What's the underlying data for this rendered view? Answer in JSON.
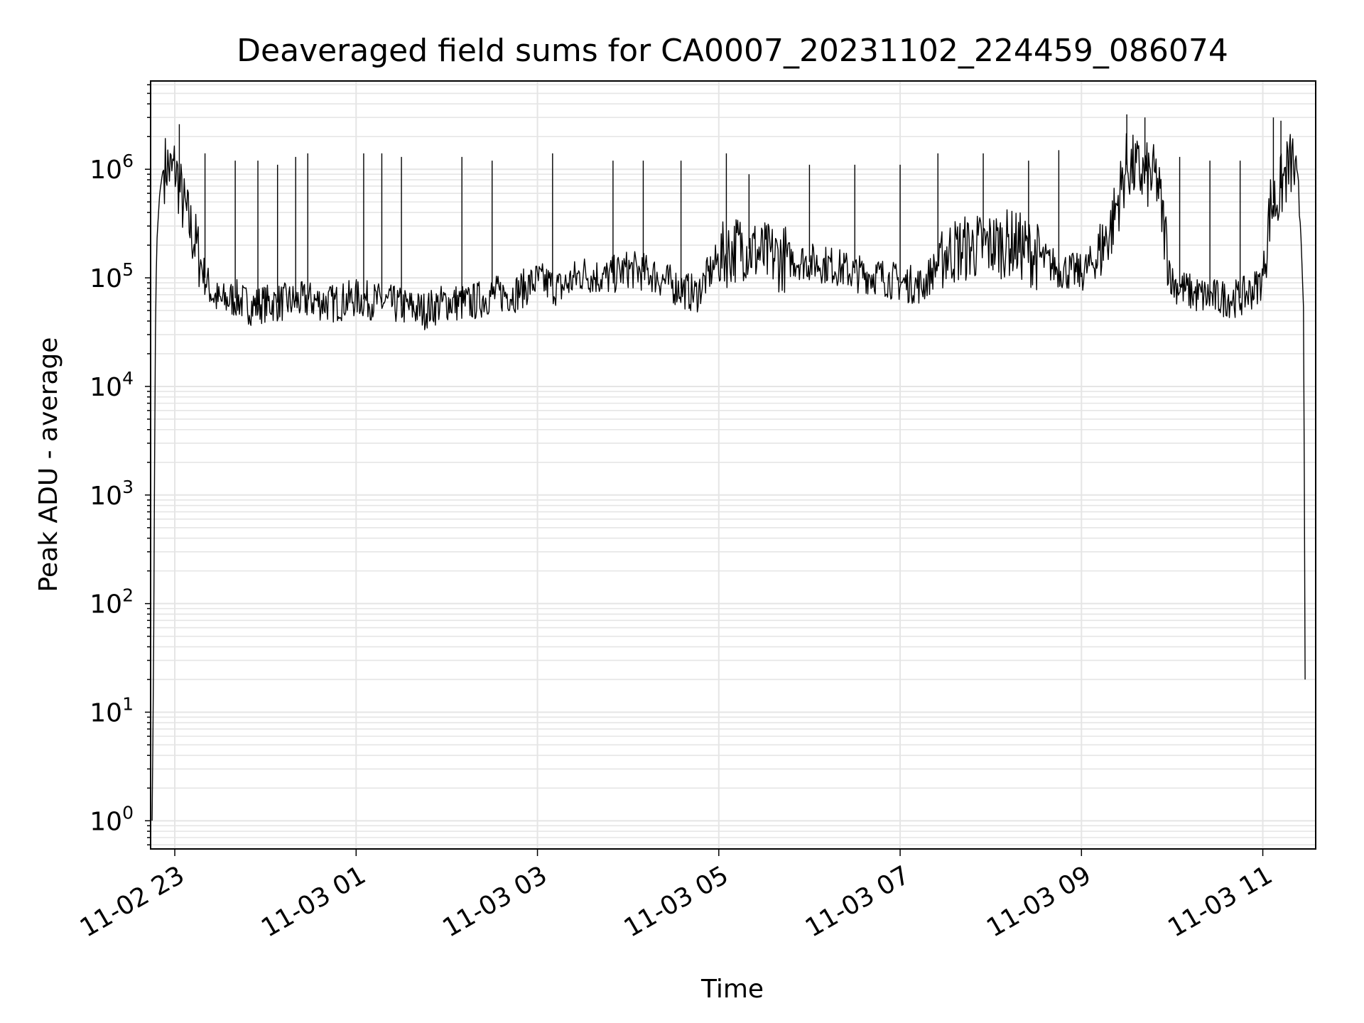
{
  "chart_data": {
    "type": "line",
    "title": "Deaveraged field sums for CA0007_20231102_224459_086074",
    "xlabel": "Time",
    "ylabel": "Peak ADU - average",
    "yscale": "log",
    "ylim": [
      0.55,
      6500000
    ],
    "xlim": [
      "11-02 22:44:00",
      "11-03 11:35:00"
    ],
    "grid": true,
    "line_color": "#000000",
    "grid_color": "#e5e5e5",
    "x_ticks": [
      {
        "value": "11-02 23:00",
        "label": "11-02 23"
      },
      {
        "value": "11-03 01:00",
        "label": "11-03 01"
      },
      {
        "value": "11-03 03:00",
        "label": "11-03 03"
      },
      {
        "value": "11-03 05:00",
        "label": "11-03 05"
      },
      {
        "value": "11-03 07:00",
        "label": "11-03 07"
      },
      {
        "value": "11-03 09:00",
        "label": "11-03 09"
      },
      {
        "value": "11-03 11:00",
        "label": "11-03 11"
      }
    ],
    "y_ticks": [
      {
        "value": 1,
        "base": "10",
        "exp": "0"
      },
      {
        "value": 10,
        "base": "10",
        "exp": "1"
      },
      {
        "value": 100,
        "base": "10",
        "exp": "2"
      },
      {
        "value": 1000,
        "base": "10",
        "exp": "3"
      },
      {
        "value": 10000,
        "base": "10",
        "exp": "4"
      },
      {
        "value": 100000,
        "base": "10",
        "exp": "5"
      },
      {
        "value": 1000000,
        "base": "10",
        "exp": "6"
      }
    ],
    "series": [
      {
        "x": [
          "11-02 22:45",
          "11-02 22:46",
          "11-02 22:47",
          "11-02 22:48",
          "11-02 22:50",
          "11-02 22:52",
          "11-02 22:55",
          "11-02 22:58",
          "11-02 23:00",
          "11-02 23:03",
          "11-02 23:06",
          "11-02 23:10",
          "11-02 23:15",
          "11-02 23:20",
          "11-02 23:25",
          "11-02 23:30",
          "11-02 23:40",
          "11-02 23:50",
          "11-03 00:00",
          "11-03 00:15",
          "11-03 00:30",
          "11-03 00:45",
          "11-03 01:00",
          "11-03 01:15",
          "11-03 01:30",
          "11-03 01:45",
          "11-03 02:00",
          "11-03 02:15",
          "11-03 02:30",
          "11-03 02:45",
          "11-03 03:00",
          "11-03 03:15",
          "11-03 03:30",
          "11-03 03:45",
          "11-03 04:00",
          "11-03 04:15",
          "11-03 04:30",
          "11-03 04:45",
          "11-03 05:00",
          "11-03 05:15",
          "11-03 05:30",
          "11-03 05:45",
          "11-03 06:00",
          "11-03 06:15",
          "11-03 06:30",
          "11-03 06:45",
          "11-03 07:00",
          "11-03 07:15",
          "11-03 07:30",
          "11-03 07:45",
          "11-03 08:00",
          "11-03 08:15",
          "11-03 08:30",
          "11-03 08:45",
          "11-03 09:00",
          "11-03 09:10",
          "11-03 09:20",
          "11-03 09:30",
          "11-03 09:40",
          "11-03 09:50",
          "11-03 10:00",
          "11-03 10:15",
          "11-03 10:30",
          "11-03 10:45",
          "11-03 10:55",
          "11-03 11:00",
          "11-03 11:05",
          "11-03 11:10",
          "11-03 11:15",
          "11-03 11:20",
          "11-03 11:25",
          "11-03 11:27",
          "11-03 11:28"
        ],
        "y": [
          1,
          30,
          20000,
          200000,
          600000,
          950000,
          1100000,
          900000,
          1050000,
          700000,
          450000,
          300000,
          180000,
          100000,
          70000,
          60000,
          65000,
          55000,
          58000,
          60000,
          62000,
          58000,
          65000,
          60000,
          55000,
          50000,
          60000,
          58000,
          70000,
          72000,
          95000,
          80000,
          110000,
          100000,
          120000,
          110000,
          85000,
          70000,
          150000,
          200000,
          160000,
          150000,
          140000,
          130000,
          110000,
          105000,
          90000,
          85000,
          170000,
          190000,
          200000,
          210000,
          160000,
          120000,
          110000,
          150000,
          300000,
          1100000,
          900000,
          800000,
          90000,
          70000,
          65000,
          65000,
          80000,
          100000,
          450000,
          550000,
          900000,
          1200000,
          300000,
          50000,
          20
        ]
      }
    ],
    "spikes": [
      {
        "x": "11-02 23:03",
        "y": 2600000
      },
      {
        "x": "11-02 23:20",
        "y": 1400000
      },
      {
        "x": "11-02 23:40",
        "y": 1200000
      },
      {
        "x": "11-02 23:55",
        "y": 1200000
      },
      {
        "x": "11-03 00:08",
        "y": 1100000
      },
      {
        "x": "11-03 00:20",
        "y": 1300000
      },
      {
        "x": "11-03 00:28",
        "y": 1400000
      },
      {
        "x": "11-03 01:05",
        "y": 1400000
      },
      {
        "x": "11-03 01:17",
        "y": 1400000
      },
      {
        "x": "11-03 01:30",
        "y": 1300000
      },
      {
        "x": "11-03 02:10",
        "y": 1300000
      },
      {
        "x": "11-03 02:30",
        "y": 1200000
      },
      {
        "x": "11-03 03:10",
        "y": 1400000
      },
      {
        "x": "11-03 03:50",
        "y": 1200000
      },
      {
        "x": "11-03 04:10",
        "y": 1200000
      },
      {
        "x": "11-03 04:35",
        "y": 1200000
      },
      {
        "x": "11-03 05:05",
        "y": 1400000
      },
      {
        "x": "11-03 05:20",
        "y": 900000
      },
      {
        "x": "11-03 06:00",
        "y": 1100000
      },
      {
        "x": "11-03 06:30",
        "y": 1100000
      },
      {
        "x": "11-03 07:00",
        "y": 1100000
      },
      {
        "x": "11-03 07:25",
        "y": 1400000
      },
      {
        "x": "11-03 07:55",
        "y": 1400000
      },
      {
        "x": "11-03 08:25",
        "y": 1200000
      },
      {
        "x": "11-03 08:45",
        "y": 1500000
      },
      {
        "x": "11-03 09:30",
        "y": 3200000
      },
      {
        "x": "11-03 09:42",
        "y": 3000000
      },
      {
        "x": "11-03 10:05",
        "y": 1300000
      },
      {
        "x": "11-03 10:25",
        "y": 1200000
      },
      {
        "x": "11-03 10:45",
        "y": 1200000
      },
      {
        "x": "11-03 11:07",
        "y": 3000000
      },
      {
        "x": "11-03 11:12",
        "y": 2800000
      }
    ]
  }
}
